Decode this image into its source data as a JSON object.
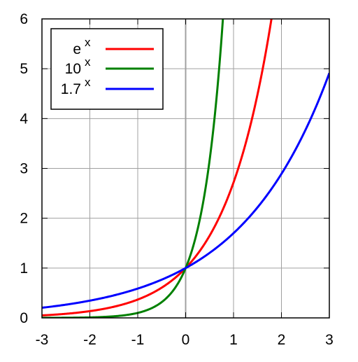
{
  "chart_data": {
    "type": "line",
    "title": "",
    "xlabel": "",
    "ylabel": "",
    "xlim": [
      -3,
      3
    ],
    "ylim": [
      0,
      6
    ],
    "grid": true,
    "legend_position": "top-left",
    "x_ticks": [
      -3,
      -2,
      -1,
      0,
      1,
      2,
      3
    ],
    "y_ticks": [
      0,
      1,
      2,
      3,
      4,
      5,
      6
    ],
    "x_tick_labels": [
      "-3",
      "-2",
      "-1",
      "0",
      "1",
      "2",
      "3"
    ],
    "y_tick_labels": [
      "0",
      "1",
      "2",
      "3",
      "4",
      "5",
      "6"
    ],
    "series": [
      {
        "name": "e",
        "name_superscript": "x",
        "base": 2.718281828,
        "color": "#ff0000",
        "x": [
          -3,
          -2.5,
          -2,
          -1.5,
          -1,
          -0.5,
          0,
          0.5,
          1,
          1.5,
          1.79
        ],
        "y": [
          0.05,
          0.08,
          0.14,
          0.22,
          0.37,
          0.61,
          1,
          1.65,
          2.72,
          4.48,
          6
        ]
      },
      {
        "name": "10",
        "name_superscript": "x",
        "base": 10,
        "color": "#008000",
        "x": [
          -3,
          -2.5,
          -2,
          -1.5,
          -1,
          -0.5,
          0,
          0.25,
          0.5,
          0.78
        ],
        "y": [
          0.001,
          0.003,
          0.01,
          0.03,
          0.1,
          0.32,
          1,
          1.78,
          3.16,
          6
        ]
      },
      {
        "name": "1.7",
        "name_superscript": "x",
        "base": 1.7,
        "color": "#0000ff",
        "x": [
          -3,
          -2.5,
          -2,
          -1.5,
          -1,
          -0.5,
          0,
          0.5,
          1,
          1.5,
          2,
          2.5,
          3
        ],
        "y": [
          0.2,
          0.27,
          0.35,
          0.45,
          0.59,
          0.77,
          1,
          1.3,
          1.7,
          2.22,
          2.89,
          3.77,
          4.91
        ]
      }
    ]
  }
}
